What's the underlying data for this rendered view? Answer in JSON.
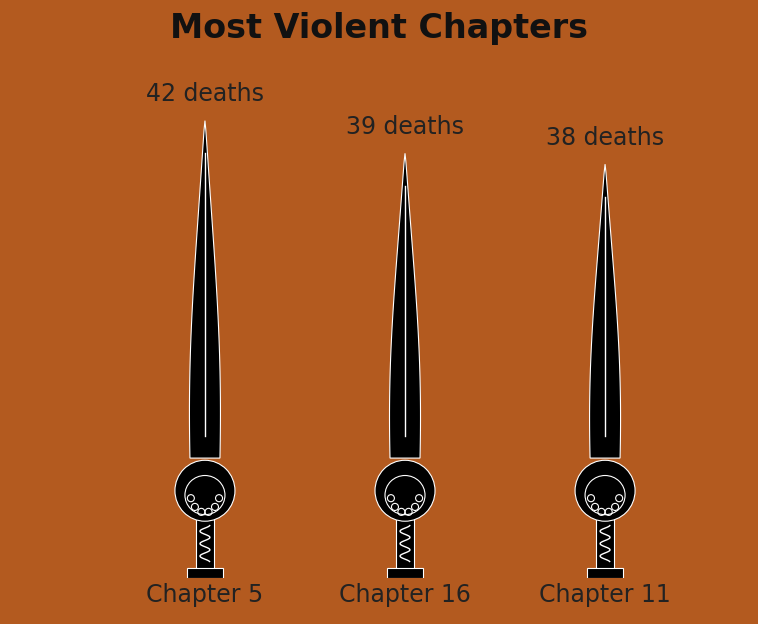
{
  "chart_data": {
    "type": "bar",
    "title": "Most Violent Chapters",
    "categories": [
      "Chapter 5",
      "Chapter 16",
      "Chapter 11"
    ],
    "values": [
      42,
      39,
      38
    ],
    "value_labels": [
      "42 deaths",
      "39 deaths",
      "38 deaths"
    ],
    "data_labels": true,
    "tick_labels": "x",
    "color": "#000000",
    "ylim": [
      0,
      45
    ]
  }
}
